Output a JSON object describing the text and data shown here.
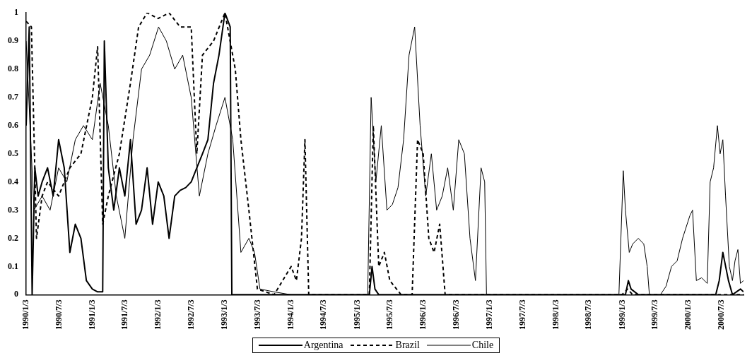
{
  "chart_data": {
    "type": "line",
    "legend": "bottom",
    "grid": false,
    "marker": "none",
    "xlim": [
      "1990-01-03",
      "2000-11-01"
    ],
    "ylim": [
      0,
      1
    ],
    "yticks": [
      0,
      0.1,
      0.2,
      0.3,
      0.4,
      0.5,
      0.6,
      0.7,
      0.8,
      0.9,
      1
    ],
    "xticks": [
      {
        "value": "1990-01-03",
        "label": "1990/1/3"
      },
      {
        "value": "1990-07-03",
        "label": "1990/7/3"
      },
      {
        "value": "1991-01-03",
        "label": "1991/1/3"
      },
      {
        "value": "1991-07-03",
        "label": "1991/7/3"
      },
      {
        "value": "1992-01-03",
        "label": "1992/1/3"
      },
      {
        "value": "1992-07-03",
        "label": "1992/7/3"
      },
      {
        "value": "1993-01-03",
        "label": "1993/1/3"
      },
      {
        "value": "1993-07-03",
        "label": "1993/7/3"
      },
      {
        "value": "1994-01-03",
        "label": "1994/1/3"
      },
      {
        "value": "1994-07-03",
        "label": "1994/7/3"
      },
      {
        "value": "1995-01-03",
        "label": "1995/1/3"
      },
      {
        "value": "1995-07-03",
        "label": "1995/7/3"
      },
      {
        "value": "1996-01-03",
        "label": "1996/1/3"
      },
      {
        "value": "1996-07-03",
        "label": "1996/7/3"
      },
      {
        "value": "1997-01-03",
        "label": "1997/1/3"
      },
      {
        "value": "1997-07-03",
        "label": "1997/7/3"
      },
      {
        "value": "1998-01-03",
        "label": "1998/1/3"
      },
      {
        "value": "1998-07-03",
        "label": "1998/7/3"
      },
      {
        "value": "1999-01-03",
        "label": "1999/1/3"
      },
      {
        "value": "1999-07-03",
        "label": "1999/7/3"
      },
      {
        "value": "2000-01-03",
        "label": "2000/1/3"
      },
      {
        "value": "2000-07-03",
        "label": "2000/7/3"
      }
    ],
    "series": [
      {
        "name": "Argentina",
        "color": "#000000",
        "line_style": "solid",
        "x": [
          "1990-01-03",
          "1990-01-20",
          "1990-02-05",
          "1990-02-20",
          "1990-03-10",
          "1990-04-01",
          "1990-05-01",
          "1990-06-01",
          "1990-07-01",
          "1990-08-01",
          "1990-09-01",
          "1990-10-01",
          "1990-11-01",
          "1990-12-01",
          "1991-01-03",
          "1991-02-01",
          "1991-03-01",
          "1991-03-10",
          "1991-04-01",
          "1991-05-01",
          "1991-06-01",
          "1991-07-01",
          "1991-08-01",
          "1991-09-01",
          "1991-10-01",
          "1991-11-01",
          "1991-12-01",
          "1992-01-01",
          "1992-02-01",
          "1992-03-01",
          "1992-04-01",
          "1992-05-01",
          "1992-06-01",
          "1992-07-01",
          "1992-08-01",
          "1992-09-01",
          "1992-10-01",
          "1992-11-01",
          "1992-12-01",
          "1993-01-03",
          "1993-02-01",
          "1993-02-10",
          "1993-04-01",
          "1993-07-01",
          "1993-10-01",
          "1993-11-15",
          "1993-12-15",
          "1994-01-15",
          "1994-02-15",
          "1994-03-10",
          "1994-03-25",
          "1994-04-10",
          "1994-07-01",
          "1995-01-01",
          "1995-03-10",
          "1995-03-25",
          "1995-04-10",
          "1995-05-01",
          "1995-06-01",
          "1995-07-01",
          "1995-09-01",
          "1995-10-15",
          "1995-11-15",
          "1995-12-15",
          "1996-01-15",
          "1996-03-01",
          "1996-05-01",
          "1996-07-01",
          "1996-09-01",
          "1996-12-01",
          "1997-06-01",
          "1998-06-01",
          "1999-01-01",
          "1999-01-20",
          "1999-02-05",
          "1999-02-20",
          "1999-04-01",
          "1999-05-01",
          "1999-06-01",
          "1999-09-01",
          "2000-01-01",
          "2000-01-10",
          "2000-02-01",
          "2000-05-01",
          "2000-06-01",
          "2000-06-20",
          "2000-07-10",
          "2000-08-10",
          "2000-09-01",
          "2000-10-15",
          "2000-11-01"
        ],
        "values": [
          0.6,
          0.95,
          0,
          0.45,
          0.35,
          0.4,
          0.45,
          0.35,
          0.55,
          0.45,
          0.15,
          0.25,
          0.2,
          0.05,
          0.02,
          0.01,
          0.01,
          0.9,
          0.45,
          0.3,
          0.45,
          0.35,
          0.55,
          0.25,
          0.3,
          0.45,
          0.25,
          0.4,
          0.35,
          0.2,
          0.35,
          0.37,
          0.38,
          0.4,
          0.45,
          0.5,
          0.55,
          0.75,
          0.85,
          1.0,
          0.95,
          0,
          0,
          0,
          0,
          0,
          0,
          0,
          0,
          0,
          0,
          0,
          0,
          0,
          0,
          0.1,
          0.02,
          0,
          0,
          0,
          0,
          0,
          0,
          0,
          0,
          0,
          0,
          0,
          0,
          0,
          0,
          0,
          0,
          0,
          0.05,
          0.02,
          0,
          0,
          0,
          0,
          0,
          0,
          0,
          0,
          0,
          0.05,
          0.15,
          0.05,
          0,
          0.02,
          0.01
        ]
      },
      {
        "name": "Brazil",
        "color": "#000000",
        "line_style": "dashed",
        "x": [
          "1990-01-03",
          "1990-02-01",
          "1990-03-01",
          "1990-04-01",
          "1990-05-01",
          "1990-07-01",
          "1990-09-01",
          "1990-11-01",
          "1991-01-03",
          "1991-02-01",
          "1991-03-01",
          "1991-04-01",
          "1991-06-01",
          "1991-08-01",
          "1991-09-15",
          "1991-11-01",
          "1992-01-01",
          "1992-03-01",
          "1992-05-01",
          "1992-07-01",
          "1992-08-01",
          "1992-09-01",
          "1992-11-01",
          "1993-01-03",
          "1993-03-01",
          "1993-04-01",
          "1993-05-15",
          "1993-07-01",
          "1993-10-01",
          "1994-01-03",
          "1994-02-01",
          "1994-03-01",
          "1994-03-20",
          "1994-04-10",
          "1995-03-10",
          "1995-04-01",
          "1995-05-01",
          "1995-06-01",
          "1995-07-01",
          "1995-09-01",
          "1995-11-01",
          "1995-12-01",
          "1996-01-01",
          "1996-02-01",
          "1996-03-01",
          "1996-04-01",
          "1996-05-01",
          "1996-06-01",
          "1997-01-01",
          "1999-01-01",
          "1999-02-01",
          "1999-03-01",
          "2000-01-01",
          "2000-06-01",
          "2000-11-01"
        ],
        "values": [
          0.97,
          0.95,
          0.2,
          0.35,
          0.4,
          0.35,
          0.45,
          0.5,
          0.7,
          0.88,
          0.25,
          0.35,
          0.5,
          0.75,
          0.95,
          1.0,
          0.98,
          1.0,
          0.95,
          0.95,
          0.5,
          0.85,
          0.9,
          1.0,
          0.8,
          0.55,
          0.3,
          0.02,
          0,
          0.1,
          0.05,
          0.2,
          0.55,
          0,
          0,
          0.6,
          0.1,
          0.15,
          0.05,
          0,
          0,
          0.55,
          0.5,
          0.2,
          0.15,
          0.25,
          0,
          0,
          0,
          0,
          0.02,
          0,
          0,
          0,
          0
        ]
      },
      {
        "name": "Chile",
        "color": "#000000",
        "line_style": "solid",
        "x": [
          "1990-01-03",
          "1990-02-15",
          "1990-04-01",
          "1990-05-15",
          "1990-07-01",
          "1990-08-15",
          "1990-10-01",
          "1990-11-15",
          "1991-01-03",
          "1991-02-15",
          "1991-04-01",
          "1991-05-15",
          "1991-07-01",
          "1991-08-15",
          "1991-10-01",
          "1991-11-15",
          "1992-01-03",
          "1992-02-15",
          "1992-04-01",
          "1992-05-15",
          "1992-07-01",
          "1992-08-15",
          "1992-10-01",
          "1992-11-15",
          "1993-01-03",
          "1993-02-15",
          "1993-04-01",
          "1993-05-15",
          "1993-06-15",
          "1993-07-15",
          "1993-10-01",
          "1994-01-01",
          "1994-04-01",
          "1995-03-01",
          "1995-03-20",
          "1995-04-15",
          "1995-05-15",
          "1995-06-15",
          "1995-07-15",
          "1995-08-15",
          "1995-09-15",
          "1995-10-15",
          "1995-11-15",
          "1995-12-15",
          "1996-01-15",
          "1996-02-15",
          "1996-03-15",
          "1996-04-15",
          "1996-05-15",
          "1996-06-15",
          "1996-07-15",
          "1996-08-15",
          "1996-09-15",
          "1996-10-15",
          "1996-11-15",
          "1996-12-05",
          "1996-12-15",
          "1997-06-01",
          "1998-06-01",
          "1998-12-15",
          "1999-01-08",
          "1999-01-20",
          "1999-02-10",
          "1999-03-01",
          "1999-04-01",
          "1999-05-01",
          "1999-05-20",
          "1999-06-01",
          "1999-08-01",
          "1999-09-01",
          "1999-10-01",
          "1999-11-01",
          "1999-12-01",
          "2000-01-10",
          "2000-01-25",
          "2000-02-15",
          "2000-03-15",
          "2000-04-15",
          "2000-05-01",
          "2000-05-20",
          "2000-06-10",
          "2000-06-25",
          "2000-07-10",
          "2000-07-25",
          "2000-08-15",
          "2000-09-01",
          "2000-09-15",
          "2000-10-01",
          "2000-10-15",
          "2000-11-01"
        ],
        "values": [
          0.9,
          0.3,
          0.35,
          0.3,
          0.45,
          0.4,
          0.55,
          0.6,
          0.55,
          0.75,
          0.6,
          0.35,
          0.2,
          0.55,
          0.8,
          0.85,
          0.95,
          0.9,
          0.8,
          0.85,
          0.7,
          0.35,
          0.5,
          0.6,
          0.7,
          0.55,
          0.15,
          0.2,
          0.15,
          0.02,
          0.01,
          0,
          0,
          0,
          0.7,
          0.4,
          0.6,
          0.3,
          0.32,
          0.38,
          0.55,
          0.85,
          0.95,
          0.6,
          0.35,
          0.5,
          0.3,
          0.35,
          0.45,
          0.3,
          0.55,
          0.5,
          0.2,
          0.05,
          0.45,
          0.4,
          0,
          0,
          0,
          0,
          0.44,
          0.3,
          0.15,
          0.18,
          0.2,
          0.18,
          0.1,
          0,
          0,
          0.03,
          0.1,
          0.12,
          0.2,
          0.28,
          0.3,
          0.05,
          0.06,
          0.04,
          0.4,
          0.45,
          0.6,
          0.5,
          0.55,
          0.35,
          0.1,
          0.05,
          0.12,
          0.16,
          0.04,
          0.05
        ]
      }
    ]
  }
}
